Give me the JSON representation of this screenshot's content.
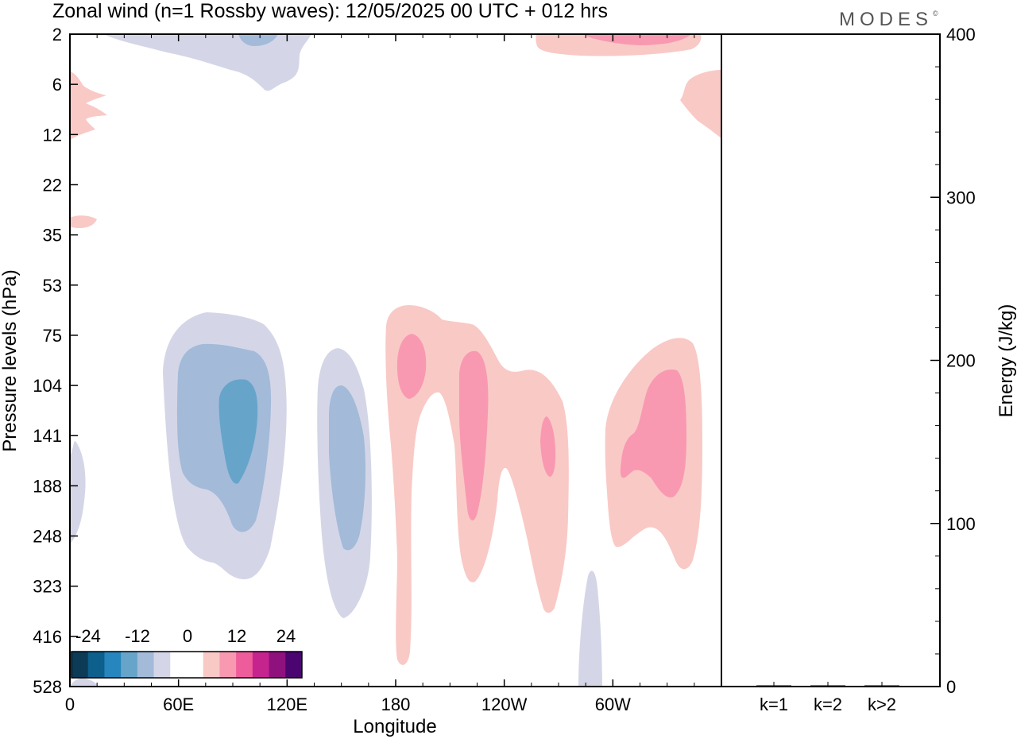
{
  "chart_data": [
    {
      "type": "heatmap",
      "title": "Zonal wind (n=1 Rossby waves):  12/05/2025  00 UTC  + 012 hrs",
      "xlabel": "Longitude",
      "ylabel": "Pressure levels (hPa)",
      "x_ticks": [
        {
          "label": "0",
          "lon": 0
        },
        {
          "label": "60E",
          "lon": 60
        },
        {
          "label": "120E",
          "lon": 120
        },
        {
          "label": "180",
          "lon": 180
        },
        {
          "label": "120W",
          "lon": 240
        },
        {
          "label": "60W",
          "lon": 300
        }
      ],
      "xlim": [
        0,
        360
      ],
      "y_levels": [
        "2",
        "6",
        "12",
        "22",
        "35",
        "53",
        "75",
        "104",
        "141",
        "188",
        "248",
        "323",
        "416",
        "528"
      ],
      "colorbar": {
        "labels": [
          "-24",
          "-12",
          "0",
          "12",
          "24"
        ],
        "colors": [
          "#0b3b57",
          "#0d5f8c",
          "#2686bd",
          "#67a4ca",
          "#a3bad9",
          "#d4d6e7",
          "#ffffff",
          "#ffffff",
          "#f9c9c6",
          "#f899b1",
          "#ee5c9b",
          "#c5248f",
          "#8f117e",
          "#4a0570"
        ]
      },
      "contours": [
        {
          "value": -4,
          "color": "#d4d6e7",
          "regions": [
            {
              "lon": [
                48,
                58
              ],
              "lev": [
                2,
                5
              ],
              "note": ""
            },
            {
              "lon": [
                38,
                80
              ],
              "lev": [
                53,
                323
              ]
            },
            {
              "lon": [
                136,
                162
              ],
              "lev": [
                75,
                416
              ]
            },
            {
              "lon": [
                0,
                4
              ],
              "lev": [
                141,
                248
              ]
            },
            {
              "lon": [
                284,
                292
              ],
              "lev": [
                323,
                528
              ]
            }
          ]
        },
        {
          "value": -8,
          "color": "#a3bad9",
          "regions": [
            {
              "lon": [
                56,
                61
              ],
              "lev": [
                2,
                3
              ]
            },
            {
              "lon": [
                43,
                75
              ],
              "lev": [
                75,
                248
              ]
            },
            {
              "lon": [
                142,
                157
              ],
              "lev": [
                104,
                248
              ]
            }
          ]
        },
        {
          "value": -12,
          "color": "#67a4ca",
          "regions": [
            {
              "lon": [
                52,
                72
              ],
              "lev": [
                104,
                188
              ]
            }
          ]
        },
        {
          "value": 4,
          "color": "#f9c9c6",
          "regions": [
            {
              "lon": [
                258,
                310
              ],
              "lev": [
                2,
                3
              ]
            },
            {
              "lon": [
                0,
                18
              ],
              "lev": [
                5,
                12
              ]
            },
            {
              "lon": [
                0,
                14
              ],
              "lev": [
                30,
                35
              ]
            },
            {
              "lon": [
                336,
                360
              ],
              "lev": [
                5,
                12
              ]
            },
            {
              "lon": [
                176,
                240
              ],
              "lev": [
                53,
                416
              ]
            },
            {
              "lon": [
                240,
                282
              ],
              "lev": [
                104,
                323
              ]
            },
            {
              "lon": [
                298,
                351
              ],
              "lev": [
                75,
                323
              ]
            }
          ]
        },
        {
          "value": 8,
          "color": "#f899b1",
          "regions": [
            {
              "lon": [
                264,
                296
              ],
              "lev": [
                2,
                3
              ]
            },
            {
              "lon": [
                182,
                195
              ],
              "lev": [
                75,
                104
              ]
            },
            {
              "lon": [
                212,
                224
              ],
              "lev": [
                75,
                248
              ]
            },
            {
              "lon": [
                262,
                268
              ],
              "lev": [
                104,
                188
              ]
            },
            {
              "lon": [
                306,
                340
              ],
              "lev": [
                90,
                188
              ]
            }
          ]
        }
      ]
    },
    {
      "type": "bar",
      "title": "",
      "categories": [
        "k=1",
        "k=2",
        "k>2"
      ],
      "values": [
        0.5,
        0.2,
        0.1
      ],
      "xlabel": "",
      "ylabel": "Energy (J/kg)",
      "ylim": [
        0,
        400
      ],
      "y_ticks": [
        "0",
        "100",
        "200",
        "300",
        "400"
      ]
    }
  ],
  "logo": "MODES",
  "logo_mark": "©"
}
